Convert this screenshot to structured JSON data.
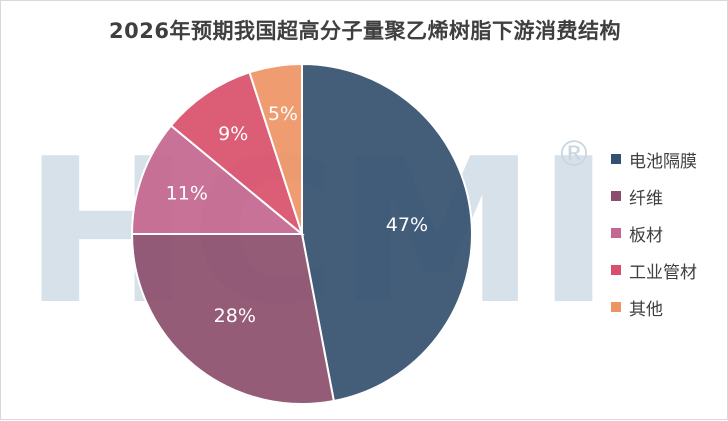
{
  "chart_data": {
    "type": "pie",
    "title": "2026年预期我国超高分子量聚乙烯树脂下游消费结构",
    "categories": [
      "电池隔膜",
      "纤维",
      "板材",
      "工业管材",
      "其他"
    ],
    "values": [
      47,
      28,
      11,
      9,
      5
    ],
    "value_labels": [
      "47%",
      "28%",
      "11%",
      "9%",
      "5%"
    ],
    "colors": [
      "#34506f",
      "#8c4e6d",
      "#c4668e",
      "#d94f6a",
      "#ee9464"
    ],
    "start_angle_deg": 0,
    "direction": "clockwise",
    "legend_position": "right"
  },
  "watermark": {
    "letters": "HCMI",
    "symbol": "®",
    "color": "#c9d7e3"
  }
}
